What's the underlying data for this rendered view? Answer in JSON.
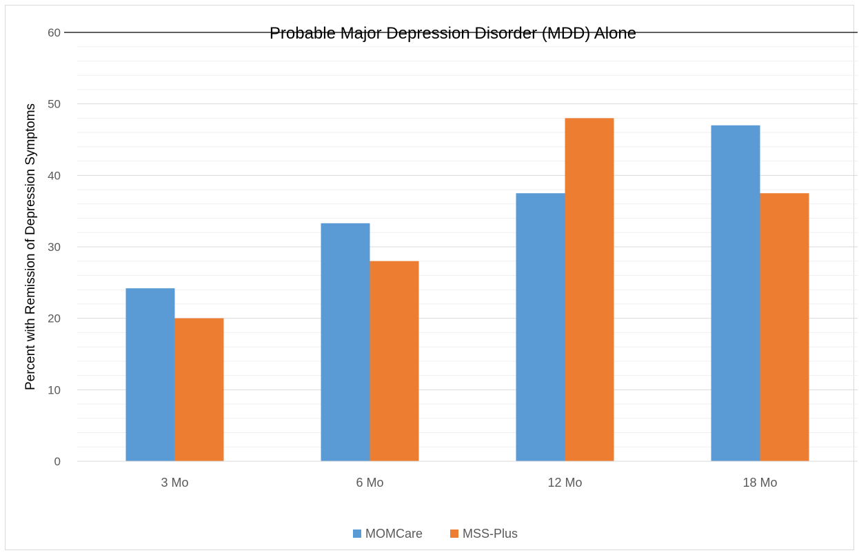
{
  "chart_data": {
    "type": "bar",
    "title": "Probable Major Depression Disorder (MDD) Alone",
    "xlabel": "",
    "ylabel": "Percent with Remission of Depression Symptoms",
    "categories": [
      "3 Mo",
      "6 Mo",
      "12 Mo",
      "18 Mo"
    ],
    "series": [
      {
        "name": "MOMCare",
        "color": "#5b9bd5",
        "values": [
          24.2,
          33.3,
          37.5,
          47.0
        ]
      },
      {
        "name": "MSS-Plus",
        "color": "#ed7d31",
        "values": [
          20.0,
          28.0,
          48.0,
          37.5
        ]
      }
    ],
    "ylim": [
      0,
      60
    ],
    "yticks": [
      "0",
      "10",
      "20",
      "30",
      "40",
      "50",
      "60"
    ],
    "grid": true,
    "legend_position": "bottom"
  }
}
